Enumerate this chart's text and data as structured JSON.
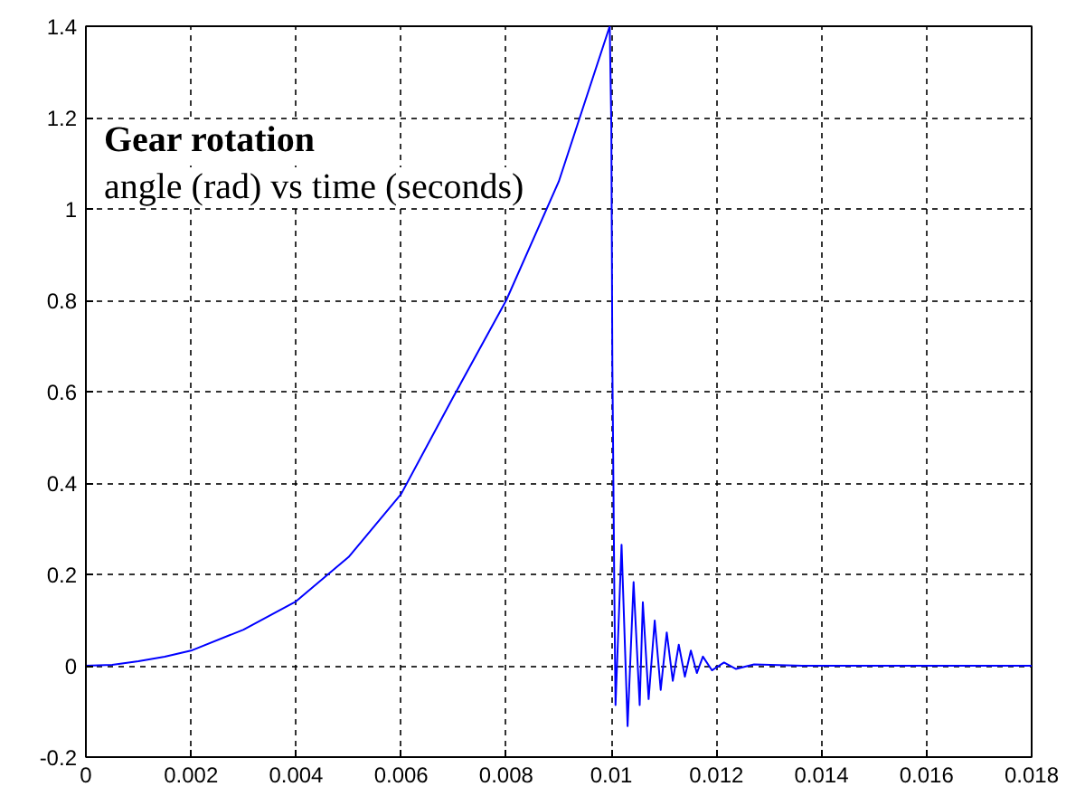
{
  "chart_data": {
    "type": "line",
    "title": "Gear rotation",
    "subtitle": "angle (rad) vs time (seconds)",
    "x": [
      0,
      0.0005,
      0.001,
      0.0015,
      0.002,
      0.003,
      0.004,
      0.005,
      0.006,
      0.007,
      0.008,
      0.009,
      0.00997,
      0.01,
      0.01002,
      0.01004,
      0.010057,
      0.01008,
      0.010195,
      0.01031,
      0.010424,
      0.01054,
      0.0106,
      0.01071,
      0.010826,
      0.01094,
      0.011055,
      0.01117,
      0.011284,
      0.0114,
      0.011514,
      0.011628,
      0.011743,
      0.011915,
      0.012145,
      0.012374,
      0.012718,
      0.013635,
      0.018
    ],
    "series": [
      {
        "color": "#0000ff",
        "values": [
          0,
          0.002,
          0.01,
          0.02,
          0.033,
          0.079,
          0.141,
          0.238,
          0.376,
          0.59,
          0.8,
          1.06,
          1.4,
          1.18,
          0.66,
          0.4,
          0.166,
          -0.086,
          0.265,
          -0.132,
          0.183,
          -0.086,
          0.139,
          -0.073,
          0.099,
          -0.053,
          0.073,
          -0.033,
          0.046,
          -0.024,
          0.033,
          -0.016,
          0.02,
          -0.01,
          0.007,
          -0.007,
          0.003,
          0,
          0
        ]
      }
    ],
    "xlim": [
      0,
      0.018
    ],
    "xticks": [
      0,
      0.002,
      0.004,
      0.006,
      0.008,
      0.01,
      0.012,
      0.014,
      0.016,
      0.018
    ],
    "ylim": [
      -0.2,
      1.4
    ],
    "yticks": [
      -0.2,
      0,
      0.2,
      0.4,
      0.6,
      0.8,
      1,
      1.2,
      1.4
    ],
    "grid": true
  }
}
